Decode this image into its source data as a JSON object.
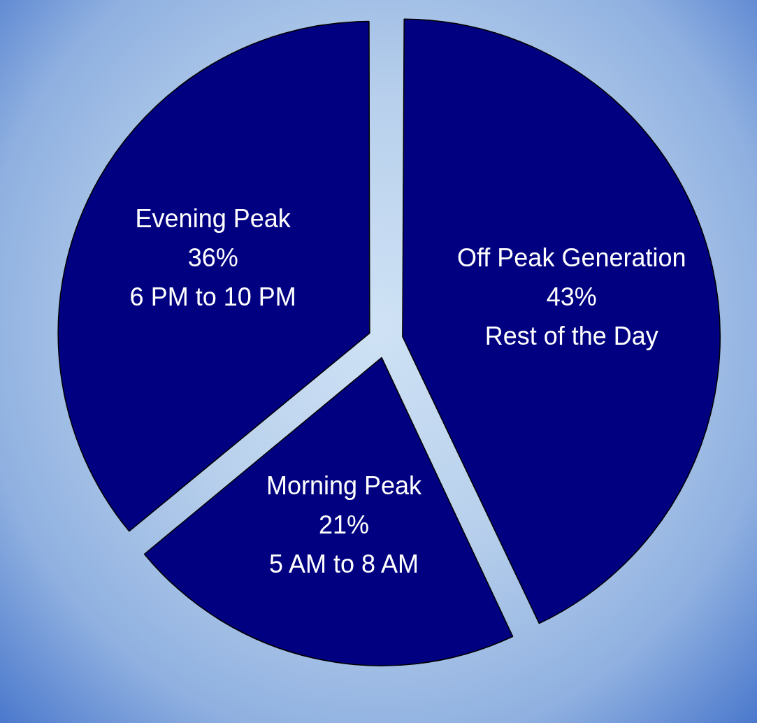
{
  "chart_data": {
    "type": "pie",
    "categories": [
      "Off Peak Generation",
      "Morning Peak",
      "Evening Peak"
    ],
    "values": [
      43,
      21,
      36
    ],
    "colors": [
      "#000080",
      "#000080",
      "#000080"
    ],
    "value_labels": [
      "43%",
      "21%",
      "36%"
    ],
    "legend": false,
    "annotations": [
      {
        "text": "Rest of the Day",
        "x": "Off Peak Generation"
      },
      {
        "text": "5 AM to 8 AM",
        "x": "Morning Peak"
      },
      {
        "text": "6 PM to 10 PM",
        "x": "Evening Peak"
      }
    ]
  }
}
